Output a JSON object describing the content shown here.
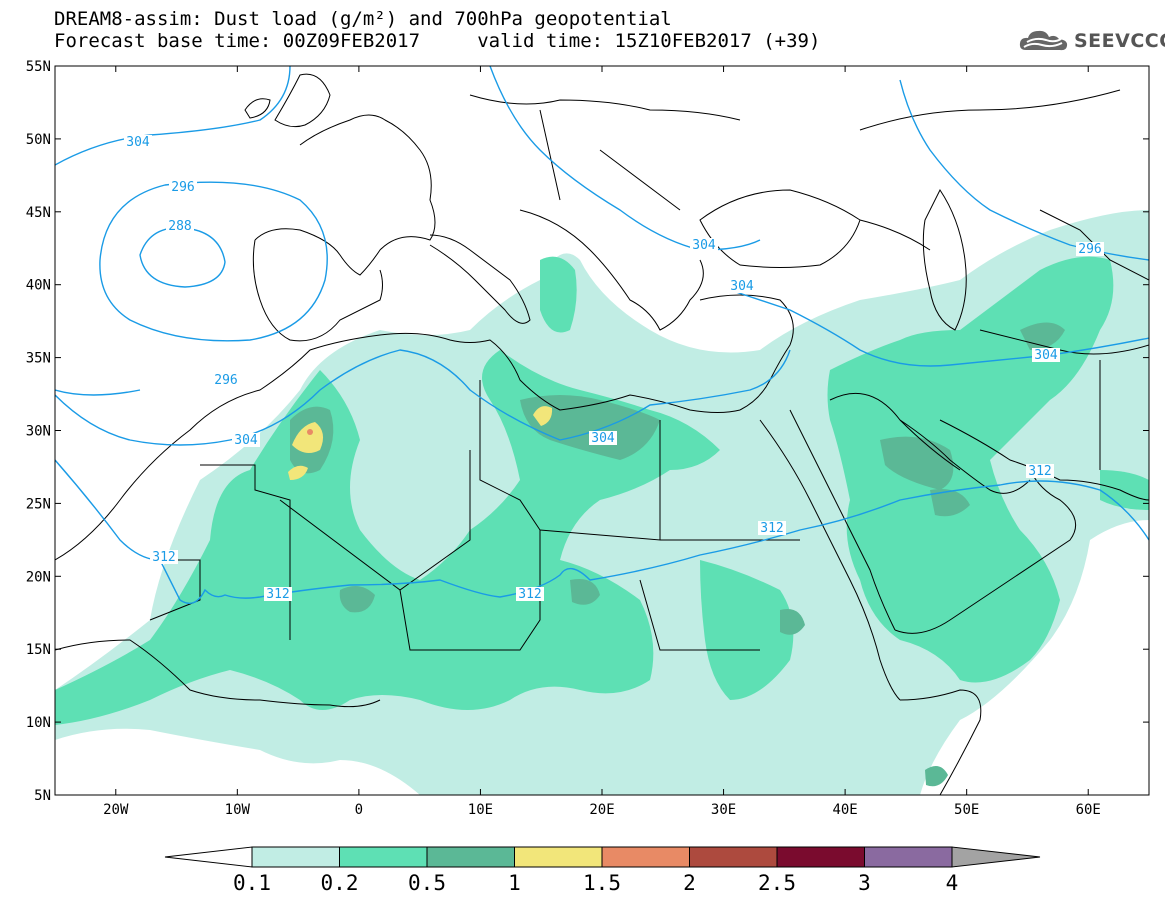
{
  "title": {
    "line1": "DREAM8-assim: Dust load (g/m²) and 700hPa geopotential",
    "line2": "Forecast base time: 00Z09FEB2017     valid time: 15Z10FEB2017 (+39)"
  },
  "logo": {
    "icon": "cloud-icon",
    "text": "SEEVCCC"
  },
  "map": {
    "lon_range": [
      -25,
      65
    ],
    "lat_range": [
      5,
      55
    ],
    "lat_ticks": [
      "55N",
      "50N",
      "45N",
      "40N",
      "35N",
      "30N",
      "25N",
      "20N",
      "15N",
      "10N",
      "5N"
    ],
    "lon_ticks": [
      "20W",
      "10W",
      "0",
      "10E",
      "20E",
      "30E",
      "40E",
      "50E",
      "60E"
    ],
    "contour_color": "#1a9be6",
    "contours": [
      {
        "label": "288"
      },
      {
        "label": "296"
      },
      {
        "label": "296"
      },
      {
        "label": "296"
      },
      {
        "label": "304"
      },
      {
        "label": "304"
      },
      {
        "label": "304"
      },
      {
        "label": "304"
      },
      {
        "label": "304"
      },
      {
        "label": "304"
      },
      {
        "label": "312"
      },
      {
        "label": "312"
      },
      {
        "label": "312"
      },
      {
        "label": "312"
      },
      {
        "label": "312"
      }
    ]
  },
  "colorbar": {
    "labels": [
      "0.1",
      "0.2",
      "0.5",
      "1",
      "1.5",
      "2",
      "2.5",
      "3",
      "4"
    ],
    "colors": [
      "#c1ede4",
      "#5ee0b4",
      "#5bb896",
      "#f2e67a",
      "#e88a65",
      "#ad4a3e",
      "#7a0b2e",
      "#8a6aa0"
    ],
    "min_arrow_color": "#ffffff",
    "max_arrow_color": "#a3a3a3"
  }
}
